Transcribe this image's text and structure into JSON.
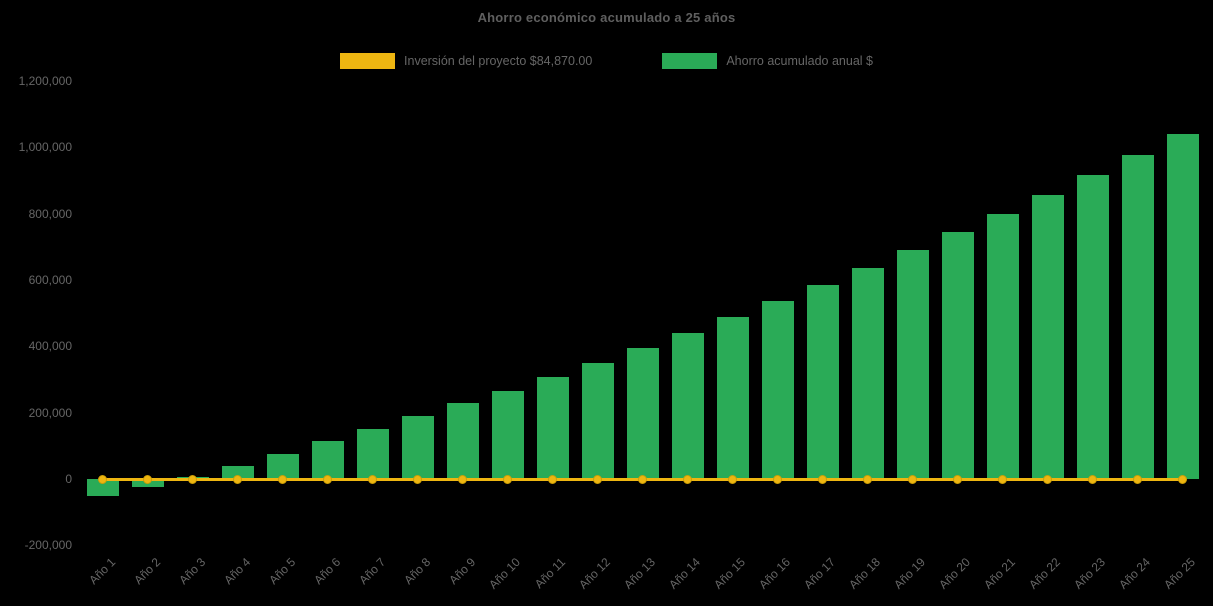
{
  "chart_data": {
    "type": "bar",
    "title": "Ahorro económico acumulado a 25 años",
    "categories": [
      "Año 1",
      "Año 2",
      "Año 3",
      "Año 4",
      "Año 5",
      "Año 6",
      "Año 7",
      "Año 8",
      "Año 9",
      "Año 10",
      "Año 11",
      "Año 12",
      "Año 13",
      "Año 14",
      "Año 15",
      "Año 16",
      "Año 17",
      "Año 18",
      "Año 19",
      "Año 20",
      "Año 21",
      "Año 22",
      "Año 23",
      "Año 24",
      "Año 25"
    ],
    "series": [
      {
        "name": "Inversión del proyecto $84,870.00",
        "type": "line",
        "color": "#eeb611",
        "marker_border_color": "#cf9f05",
        "values": [
          0,
          0,
          0,
          0,
          0,
          0,
          0,
          0,
          0,
          0,
          0,
          0,
          0,
          0,
          0,
          0,
          0,
          0,
          0,
          0,
          0,
          0,
          0,
          0,
          0
        ]
      },
      {
        "name": "Ahorro acumulado anual $",
        "type": "bar",
        "color": "#2aab57",
        "values": [
          -50000,
          -25000,
          5000,
          38000,
          75000,
          115000,
          150000,
          190000,
          228000,
          265000,
          308000,
          350000,
          395000,
          440000,
          487000,
          537000,
          585000,
          637000,
          690000,
          745000,
          800000,
          857000,
          918000,
          978000,
          1040000
        ]
      }
    ],
    "y_axis": {
      "ticks": [
        {
          "label": "1,200,000",
          "value": 1200000
        },
        {
          "label": "1,000,000",
          "value": 1000000
        },
        {
          "label": "800,000",
          "value": 800000
        },
        {
          "label": "600,000",
          "value": 600000
        },
        {
          "label": "400,000",
          "value": 400000
        },
        {
          "label": "200,000",
          "value": 200000
        },
        {
          "label": "0",
          "value": 0
        },
        {
          "label": "-200,000",
          "value": -200000
        }
      ],
      "ylim": [
        -200000,
        1200000
      ]
    },
    "xlabel": "",
    "ylabel": "",
    "grid": false,
    "legend_position": "top",
    "x_label_rotation": 45,
    "colors": {
      "background": "#000000",
      "text": "#666666",
      "title": "#5f5f5f"
    }
  }
}
